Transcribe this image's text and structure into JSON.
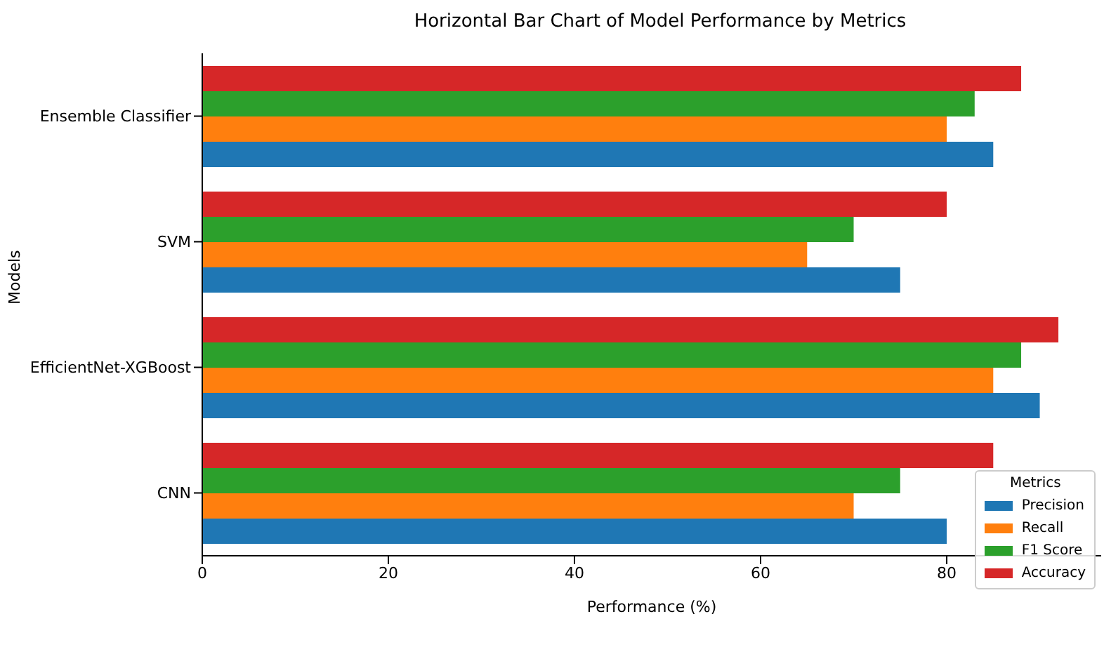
{
  "chart_data": {
    "type": "bar",
    "orientation": "horizontal",
    "title": "Horizontal Bar Chart of Model Performance by Metrics",
    "xlabel": "Performance (%)",
    "ylabel": "Models",
    "legend_title": "Metrics",
    "legend": "bottom right",
    "categories": [
      "Ensemble Classifier",
      "SVM",
      "EfficientNet-XGBoost",
      "CNN"
    ],
    "series": [
      {
        "name": "Precision",
        "color": "#1f77b4",
        "values": [
          85,
          75,
          90,
          80
        ]
      },
      {
        "name": "Recall",
        "color": "#ff7f0e",
        "values": [
          80,
          65,
          85,
          70
        ]
      },
      {
        "name": "F1 Score",
        "color": "#2ca02c",
        "values": [
          83,
          70,
          88,
          75
        ]
      },
      {
        "name": "Accuracy",
        "color": "#d62728",
        "values": [
          88,
          80,
          92,
          85
        ]
      }
    ],
    "xlim": [
      0,
      96.6
    ],
    "xticks": [
      0,
      20,
      40,
      60,
      80
    ]
  }
}
